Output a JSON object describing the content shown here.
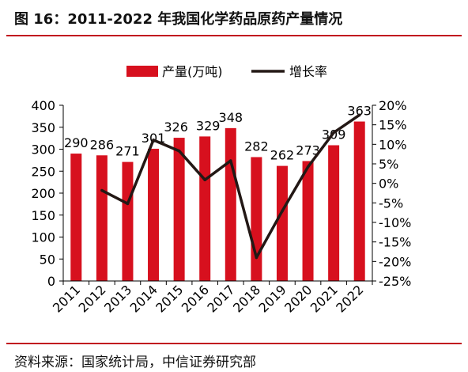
{
  "title": "图 16：2011-2022 年我国化学药品原药产量情况",
  "source": "资料来源：国家统计局，中信证券研究部",
  "colors": {
    "bar": "#d7101e",
    "line": "#231815",
    "accent_rule": "#c1121f"
  },
  "chart_data": {
    "type": "bar",
    "categories": [
      "2011",
      "2012",
      "2013",
      "2014",
      "2015",
      "2016",
      "2017",
      "2018",
      "2019",
      "2020",
      "2021",
      "2022"
    ],
    "series": [
      {
        "name": "产量(万吨)",
        "type": "bar",
        "axis": "left",
        "values": [
          290,
          286,
          271,
          301,
          326,
          329,
          348,
          282,
          262,
          273,
          309,
          363
        ]
      },
      {
        "name": "增长率",
        "type": "line",
        "axis": "right",
        "values": [
          null,
          -1.8,
          -5.2,
          11.1,
          8.3,
          0.9,
          5.8,
          -19.0,
          -7.1,
          4.2,
          13.0,
          17.5
        ]
      }
    ],
    "data_labels": [
      "290",
      "286",
      "271",
      "301",
      "326",
      "329",
      "348",
      "282",
      "262",
      "273",
      "309",
      "363"
    ],
    "y_left": {
      "ylim": [
        0,
        400
      ],
      "ticks": [
        "0",
        "50",
        "100",
        "150",
        "200",
        "250",
        "300",
        "350",
        "400"
      ]
    },
    "y_right": {
      "ylim": [
        -25,
        20
      ],
      "ticks": [
        "-25%",
        "-20%",
        "-15%",
        "-10%",
        "-5%",
        "0%",
        "5%",
        "10%",
        "15%",
        "20%"
      ]
    },
    "legend": {
      "position": "top-center",
      "items": [
        "产量(万吨)",
        "增长率"
      ]
    },
    "grid": false
  }
}
